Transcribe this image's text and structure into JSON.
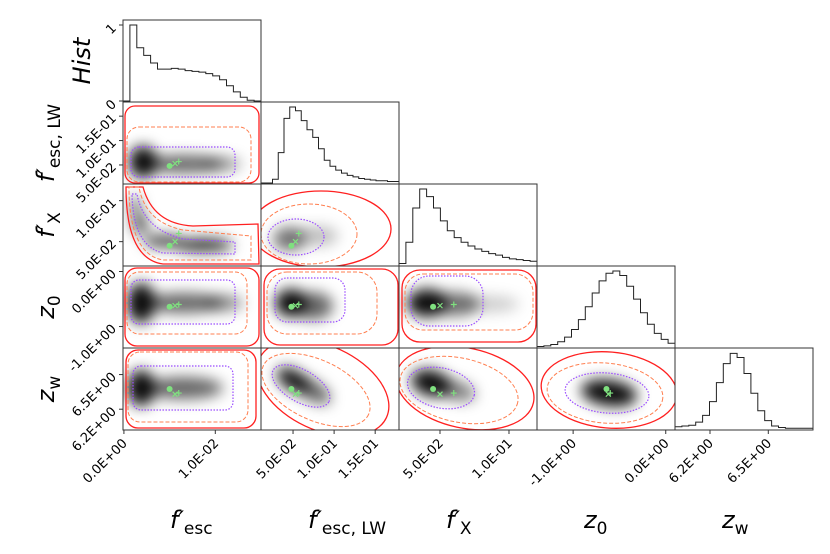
{
  "chart_data": {
    "type": "corner",
    "variables": [
      {
        "key": "fesc",
        "label": "f′",
        "sub": "esc",
        "range": [
          -0.0001,
          0.015
        ],
        "ticks": [
          0,
          0.01
        ],
        "tick_labels": [
          "0.0E+00",
          "1.0E-02"
        ]
      },
      {
        "key": "fesclw",
        "label": "f′",
        "sub": "esc, LW",
        "range": [
          0.011,
          0.179
        ],
        "ticks": [
          0.05,
          0.1,
          0.15
        ],
        "tick_labels": [
          "5.0E-02",
          "1.0E-01",
          "1.5E-01"
        ]
      },
      {
        "key": "fx",
        "label": "f′",
        "sub": "X",
        "range": [
          0.0203,
          0.1203
        ],
        "ticks": [
          0.05,
          0.1
        ],
        "tick_labels": [
          "5.0E-02",
          "1.0E-01"
        ]
      },
      {
        "key": "z0",
        "label": "z",
        "sub": "0",
        "range": [
          -1.39,
          0.1
        ],
        "ticks": [
          -1,
          0
        ],
        "tick_labels": [
          "-1.0E+00",
          "0.0E+00"
        ]
      },
      {
        "key": "zw",
        "label": "z",
        "sub": "w",
        "range": [
          6.02,
          6.73
        ],
        "ticks": [
          6.2,
          6.5
        ],
        "tick_labels": [
          "6.2E+00",
          "6.5E+00"
        ]
      }
    ],
    "hist_ylabel": "Hist",
    "hist_yticks": [
      0,
      1
    ],
    "hist_ytick_labels": [
      "0",
      "1"
    ],
    "histograms": [
      [
        0,
        1.0,
        0.7,
        0.6,
        0.5,
        0.42,
        0.42,
        0.43,
        0.42,
        0.4,
        0.39,
        0.38,
        0.36,
        0.33,
        0.28,
        0.2,
        0.12,
        0.05,
        0.01,
        0
      ],
      [
        0,
        0,
        0.05,
        0.4,
        0.85,
        1.0,
        0.95,
        0.82,
        0.7,
        0.6,
        0.45,
        0.3,
        0.22,
        0.17,
        0.13,
        0.1,
        0.08,
        0.06,
        0.05,
        0.04,
        0.03,
        0.03,
        0.02,
        0.02
      ],
      [
        0.02,
        0.3,
        0.75,
        1.0,
        0.9,
        0.75,
        0.58,
        0.45,
        0.36,
        0.3,
        0.25,
        0.21,
        0.18,
        0.15,
        0.13,
        0.1,
        0.08,
        0.07,
        0.06,
        0.05
      ],
      [
        0.006,
        0.014,
        0.033,
        0.069,
        0.13,
        0.23,
        0.36,
        0.53,
        0.71,
        0.87,
        0.97,
        1.0,
        0.94,
        0.8,
        0.63,
        0.45,
        0.3,
        0.18,
        0.1,
        0.05
      ],
      [
        0.03,
        0.04,
        0.05,
        0.09,
        0.18,
        0.36,
        0.61,
        0.86,
        0.995,
        0.94,
        0.73,
        0.47,
        0.24,
        0.11,
        0.04,
        0.02,
        0.01,
        0.01,
        0.01,
        0.01
      ]
    ],
    "markers": {
      "color": "#7fe07f",
      "dot": {
        "fesc": 0.005,
        "fesclw": 0.048,
        "fx": 0.045,
        "z0": -0.64,
        "zw": 6.375
      },
      "cross": {
        "fesc": 0.0056,
        "fesclw": 0.053,
        "fx": 0.05,
        "z0": -0.62,
        "zw": 6.33
      },
      "plus": {
        "fesc": 0.006,
        "fesclw": 0.057,
        "fx": 0.06,
        "z0": -0.6,
        "zw": 6.34
      }
    },
    "contour_colors": {
      "outer": "#ff2020",
      "middle": "#ff7f50",
      "inner": "#9b4dff"
    },
    "density_colormap": "greys"
  }
}
